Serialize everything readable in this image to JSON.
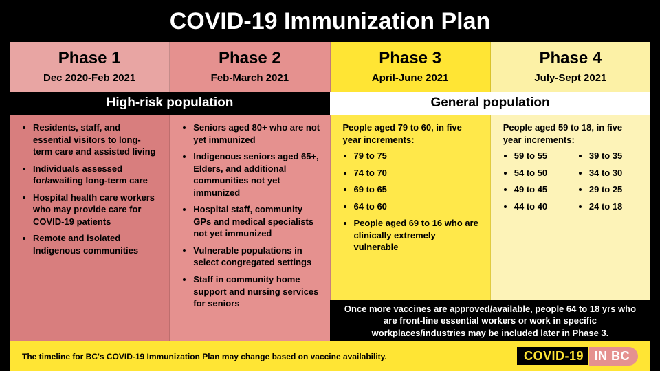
{
  "title": "COVID-19 Immunization Plan",
  "colors": {
    "pink_light": "#e8a5a3",
    "pink_med": "#e5918f",
    "pink_dark": "#d87e7e",
    "yellow_hd": "#ffe534",
    "yellow_body": "#ffe84a",
    "yellow_lt_hd": "#fcf1a6",
    "yellow_lt_body": "#fdf3b8",
    "black": "#000000",
    "white": "#ffffff",
    "footer_bg": "#ffe534",
    "brand_yellow": "#ffe534",
    "brand_pink": "#e5918f"
  },
  "population_groups": {
    "high_risk": "High-risk population",
    "general": "General population"
  },
  "phases": [
    {
      "title": "Phase 1",
      "dates": "Dec 2020-Feb 2021",
      "header_bg": "pink_light",
      "body_bg": "pink_dark",
      "body_text": "#000000",
      "bullets": [
        "Residents, staff, and essential visitors to long-term care and assisted living",
        "Individuals assessed for/awaiting long-term care",
        "Hospital health care workers who may provide care for COVID-19 patients",
        "Remote and isolated Indigenous communities"
      ]
    },
    {
      "title": "Phase 2",
      "dates": "Feb-March 2021",
      "header_bg": "pink_med",
      "body_bg": "pink_med",
      "body_text": "#000000",
      "bullets": [
        "Seniors aged 80+ who are not yet immunized",
        "Indigenous seniors aged 65+, Elders, and additional communities not yet immunized",
        "Hospital staff, community GPs and medical specialists not yet immunized",
        "Vulnerable populations in select congregated settings",
        "Staff in community home support and nursing services for seniors"
      ]
    },
    {
      "title": "Phase 3",
      "dates": "April-June 2021",
      "header_bg": "yellow_hd",
      "body_bg": "yellow_body",
      "body_text": "#000000",
      "intro": "People aged 79 to 60, in five year increments:",
      "bullets": [
        "79 to 75",
        "74 to 70",
        "69 to 65",
        "64 to 60",
        "People aged 69 to 16 who are clinically extremely vulnerable"
      ]
    },
    {
      "title": "Phase 4",
      "dates": "July-Sept 2021",
      "header_bg": "yellow_lt_hd",
      "body_bg": "yellow_lt_body",
      "body_text": "#000000",
      "intro": "People aged 59 to 18, in five year increments:",
      "columns": [
        [
          "59 to 55",
          "54 to 50",
          "49 to 45",
          "44 to 40"
        ],
        [
          "39 to 35",
          "34 to 30",
          "29 to 25",
          "24 to 18"
        ]
      ]
    }
  ],
  "bottom_note": "Once more vaccines are approved/available, people 64 to 18 yrs who are front-line essential workers or work in specific workplaces/industries may be included later in Phase 3.",
  "footnote": "The timeline for BC's COVID-19 Immunization Plan may change based on vaccine availability.",
  "brand": {
    "left": "COVID-19",
    "right": "IN BC"
  }
}
